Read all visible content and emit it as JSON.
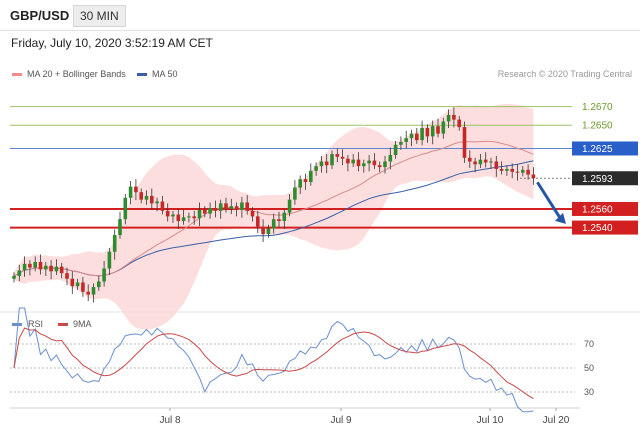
{
  "header": {
    "symbol": "GBP/USD",
    "timeframe": "30 MIN"
  },
  "datetime": "Friday, July 10, 2020 3:52:19 AM CET",
  "legend": {
    "ma20": {
      "label": "MA 20 + Bollinger Bands",
      "color": "#f28a8a"
    },
    "ma50": {
      "label": "MA 50",
      "color": "#3a5fa8"
    }
  },
  "watermark": "Research © 2020 Trading Central",
  "colors": {
    "bull": "#2e8b2e",
    "bear": "#c62828",
    "band": "#fbd8d8",
    "resistance": "#9ac262",
    "pivot": "#5b86d4",
    "support": "#d21f1f",
    "arrow": "#2456a4",
    "rsi": "#6b8fcf",
    "rsi_ma": "#c94848"
  },
  "chart_data": [
    {
      "type": "candlestick",
      "title": "GBP/USD",
      "ylim": [
        1.246,
        1.269
      ],
      "x_ticks": [
        "Jul 8",
        "Jul 9",
        "Jul 10",
        "Jul 20"
      ],
      "closes": [
        1.2488,
        1.2494,
        1.2501,
        1.2497,
        1.2503,
        1.2495,
        1.2499,
        1.2493,
        1.2498,
        1.2491,
        1.2485,
        1.2477,
        1.2481,
        1.2471,
        1.2468,
        1.2476,
        1.2482,
        1.2496,
        1.2514,
        1.2532,
        1.2549,
        1.2572,
        1.2584,
        1.2578,
        1.257,
        1.2574,
        1.2566,
        1.2568,
        1.2558,
        1.2552,
        1.2554,
        1.2547,
        1.2551,
        1.2552,
        1.255,
        1.2559,
        1.2555,
        1.2561,
        1.2558,
        1.2566,
        1.256,
        1.2563,
        1.2559,
        1.2567,
        1.2558,
        1.2552,
        1.2541,
        1.2533,
        1.2539,
        1.2549,
        1.2547,
        1.2556,
        1.257,
        1.2583,
        1.2592,
        1.2589,
        1.2601,
        1.2606,
        1.2611,
        1.2607,
        1.2619,
        1.2616,
        1.2614,
        1.2609,
        1.2613,
        1.2606,
        1.2609,
        1.2612,
        1.2607,
        1.2605,
        1.2611,
        1.2618,
        1.2629,
        1.2632,
        1.2636,
        1.2641,
        1.2634,
        1.2647,
        1.2638,
        1.2649,
        1.2641,
        1.2654,
        1.2661,
        1.2656,
        1.2648,
        1.2615,
        1.2611,
        1.2608,
        1.2613,
        1.261,
        1.2611,
        1.2603,
        1.2601,
        1.2603,
        1.26,
        1.2599,
        1.2602,
        1.2597,
        1.2593
      ],
      "series": [
        {
          "name": "MA 20 + Bollinger Bands"
        },
        {
          "name": "MA 50"
        }
      ],
      "levels": [
        {
          "label": "1.2670",
          "value": 1.267,
          "kind": "resistance"
        },
        {
          "label": "1.2650",
          "value": 1.265,
          "kind": "resistance"
        },
        {
          "label": "1.2625",
          "value": 1.2625,
          "kind": "pivot"
        },
        {
          "label": "1.2593",
          "value": 1.2593,
          "kind": "last"
        },
        {
          "label": "1.2560",
          "value": 1.256,
          "kind": "support"
        },
        {
          "label": "1.2540",
          "value": 1.254,
          "kind": "support"
        }
      ]
    },
    {
      "type": "line",
      "title": "RSI",
      "ylim": [
        20,
        80
      ],
      "y_ticks": [
        "70",
        "50",
        "30"
      ],
      "series": [
        {
          "name": "RSI"
        },
        {
          "name": "9MA"
        }
      ]
    }
  ]
}
